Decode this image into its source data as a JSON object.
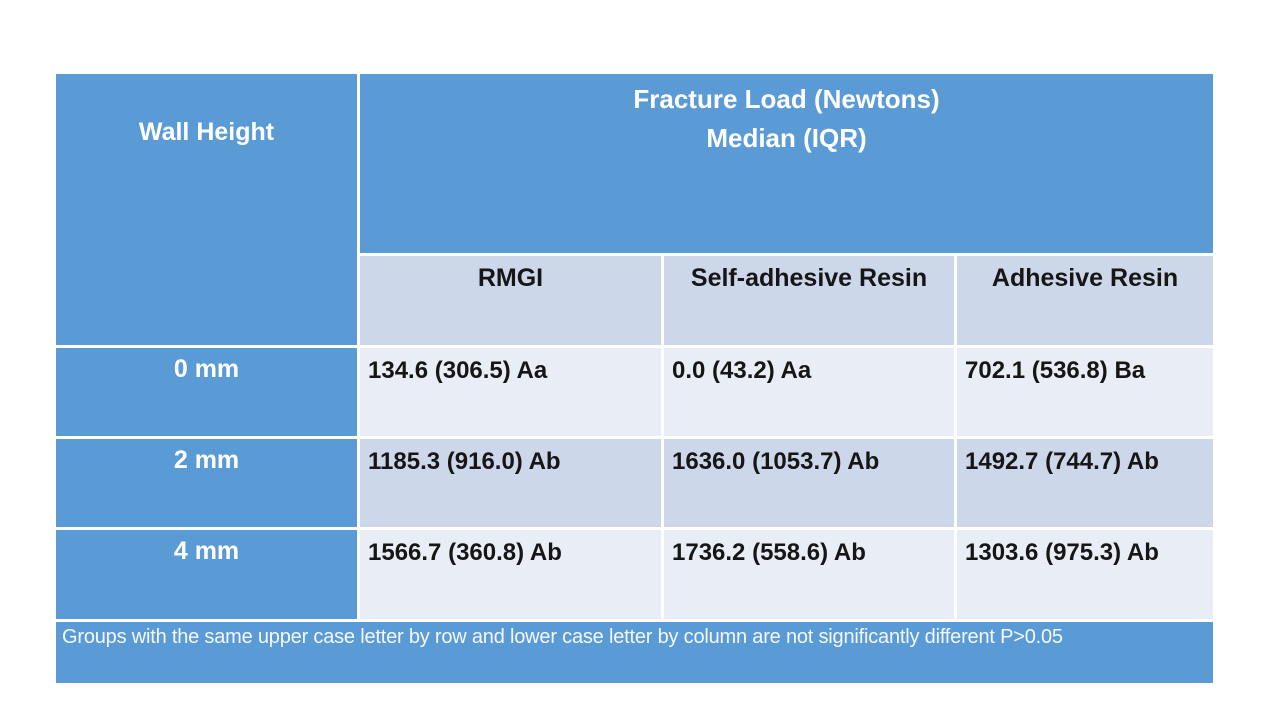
{
  "colors": {
    "header_blue": "#5b9bd5",
    "row_light": "#e9edf6",
    "row_mid": "#ccd7ea",
    "text_dark": "#161616",
    "text_light": "#ffffff"
  },
  "table": {
    "corner_header": "Wall Height",
    "main_header_line1": "Fracture Load (Newtons)",
    "main_header_line2": "Median (IQR)",
    "columns": [
      "RMGI",
      "Self-adhesive Resin",
      "Adhesive Resin"
    ],
    "rows": [
      {
        "label": "0 mm",
        "values": [
          "134.6 (306.5) Aa",
          "0.0 (43.2) Aa",
          "702.1 (536.8) Ba"
        ]
      },
      {
        "label": "2 mm",
        "values": [
          "1185.3 (916.0) Ab",
          "1636.0 (1053.7) Ab",
          "1492.7 (744.7) Ab"
        ]
      },
      {
        "label": "4 mm",
        "values": [
          "1566.7 (360.8) Ab",
          "1736.2 (558.6) Ab",
          "1303.6 (975.3) Ab"
        ]
      }
    ],
    "footnote": "Groups with the same upper case letter by row and lower case letter by column are not significantly different P>0.05"
  },
  "chart_data": {
    "type": "table",
    "title": "Fracture Load (Newtons) Median (IQR)",
    "row_header_label": "Wall Height",
    "columns": [
      "RMGI",
      "Self-adhesive Resin",
      "Adhesive Resin"
    ],
    "row_categories": [
      "0 mm",
      "2 mm",
      "4 mm"
    ],
    "cells": [
      [
        "134.6 (306.5) Aa",
        "0.0 (43.2) Aa",
        "702.1 (536.8) Ba"
      ],
      [
        "1185.3 (916.0) Ab",
        "1636.0 (1053.7) Ab",
        "1492.7 (744.7) Ab"
      ],
      [
        "1566.7 (360.8) Ab",
        "1736.2 (558.6) Ab",
        "1303.6 (975.3) Ab"
      ]
    ],
    "medians": [
      [
        134.6,
        0.0,
        702.1
      ],
      [
        1185.3,
        1636.0,
        1492.7
      ],
      [
        1566.7,
        1736.2,
        1303.6
      ]
    ],
    "iqrs": [
      [
        306.5,
        43.2,
        536.8
      ],
      [
        916.0,
        1053.7,
        744.7
      ],
      [
        360.8,
        558.6,
        975.3
      ]
    ],
    "significance_letters": [
      [
        "Aa",
        "Aa",
        "Ba"
      ],
      [
        "Ab",
        "Ab",
        "Ab"
      ],
      [
        "Ab",
        "Ab",
        "Ab"
      ]
    ],
    "footnote": "Groups with the same upper case letter by row and lower case letter by column are not significantly different P>0.05"
  }
}
